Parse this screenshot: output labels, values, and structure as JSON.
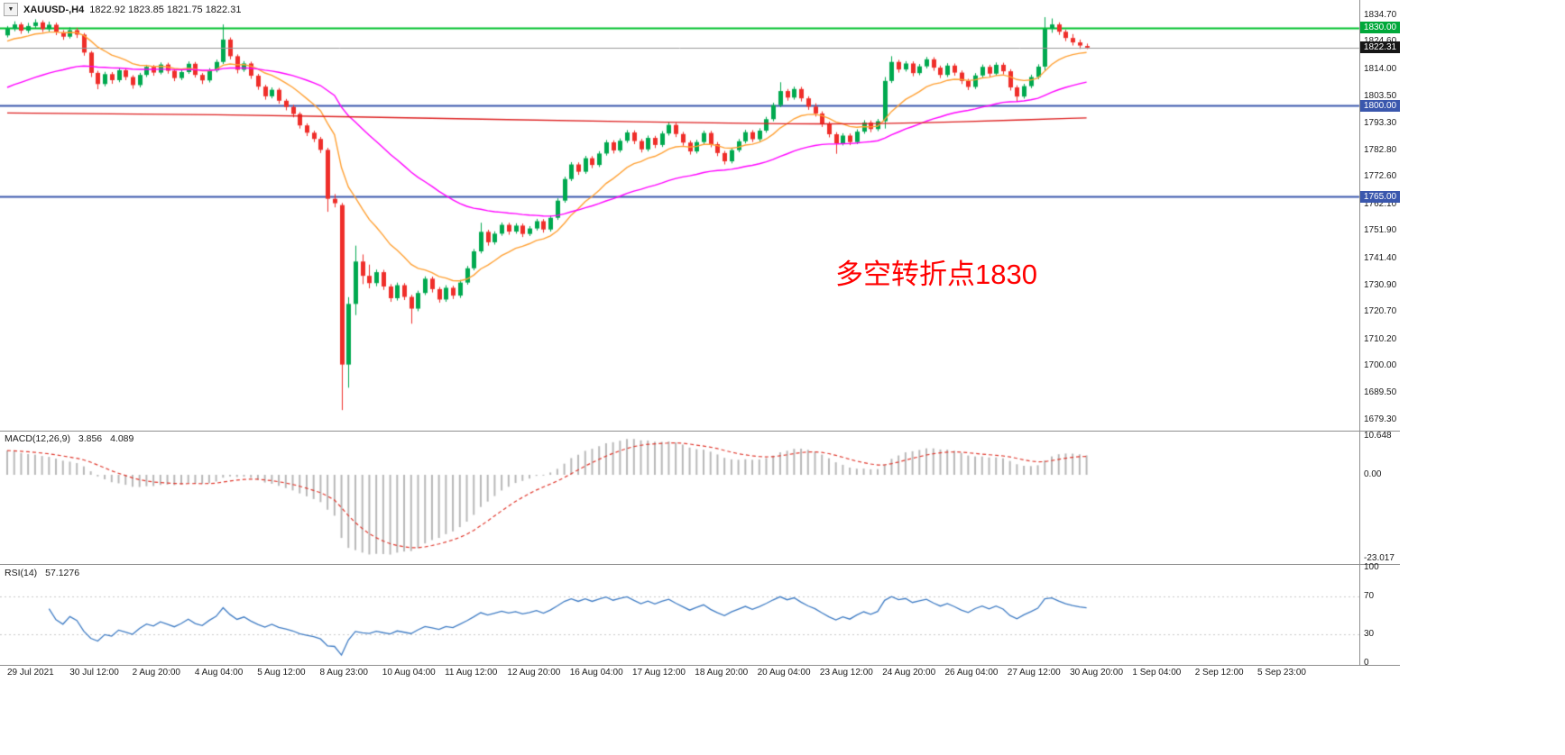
{
  "window": {
    "title_symbol": "XAUUSD-,H4",
    "title_ohlc": "1822.92 1823.85 1821.75 1822.31"
  },
  "icons": {
    "chart_menu_arrow": "▼"
  },
  "annotation": {
    "text": "多空转折点1830",
    "color": "#ff0000"
  },
  "colors": {
    "background": "#ffffff",
    "candle_up": "#00a94f",
    "candle_down": "#ef2e2a",
    "separator": "#8f8f8f",
    "axis_text": "#1a1a1a",
    "badge_green": "#00a83a",
    "badge_blue": "#3a57ad",
    "badge_black": "#161616"
  },
  "chart_data": {
    "type": "candlestick",
    "symbol": "XAUUSD-",
    "timeframe": "H4",
    "visible_price_range": [
      1679.3,
      1834.7
    ],
    "price_axis_ticks": [
      "1834.70",
      "1824.60",
      "1814.00",
      "1803.50",
      "1793.30",
      "1782.80",
      "1772.60",
      "1762.10",
      "1751.90",
      "1741.40",
      "1730.90",
      "1720.70",
      "1710.20",
      "1700.00",
      "1689.50",
      "1679.30"
    ],
    "price_badges": [
      {
        "text": "1830.00",
        "price": 1830.0,
        "color_key": "badge_green"
      },
      {
        "text": "1822.31",
        "price": 1822.31,
        "color_key": "badge_black"
      },
      {
        "text": "1800.00",
        "price": 1800.0,
        "color_key": "badge_blue"
      },
      {
        "text": "1765.00",
        "price": 1765.0,
        "color_key": "badge_blue"
      }
    ],
    "hlines": [
      {
        "price": 1830.0,
        "color": "#00c12e",
        "width": 2,
        "layer": "back"
      },
      {
        "price": 1800.0,
        "color": "#3a57ad",
        "width": 2,
        "layer": "back"
      },
      {
        "price": 1765.0,
        "color": "#3a57ad",
        "width": 2,
        "layer": "back"
      },
      {
        "price": 1822.31,
        "color": "#999999",
        "width": 1,
        "layer": "front"
      }
    ],
    "moving_averages": [
      {
        "name": "ma-fast-orange",
        "type": "ema",
        "period": 13,
        "seed": 1824,
        "color": "#ffa033"
      },
      {
        "name": "ma-medium-magenta",
        "type": "ema",
        "period": 45,
        "seed": 1806,
        "color": "#ff00ff"
      },
      {
        "name": "ma-slow-red",
        "type": "anchors",
        "color": "#dd1f1f",
        "points": [
          [
            0,
            1797.2
          ],
          [
            20,
            1796.8
          ],
          [
            40,
            1796.2
          ],
          [
            60,
            1795.2
          ],
          [
            80,
            1794.2
          ],
          [
            100,
            1793.4
          ],
          [
            112,
            1793.0
          ],
          [
            122,
            1793.0
          ],
          [
            132,
            1793.4
          ],
          [
            142,
            1794.2
          ],
          [
            150,
            1794.9
          ],
          [
            155,
            1795.3
          ]
        ]
      }
    ],
    "macd": {
      "label": "MACD(12,26,9)",
      "value_main": "3.856",
      "value_signal": "4.089",
      "axis_labels": [
        "10.648",
        "0.00",
        "-23.017"
      ],
      "params": [
        12,
        26,
        9
      ],
      "histogram_color": "#b8b8b8",
      "signal_color": "#e03a2f"
    },
    "rsi": {
      "label": "RSI(14)",
      "value": "57.1276",
      "axis_labels": [
        "100",
        "70",
        "30",
        "0"
      ],
      "period": 14,
      "levels": [
        70,
        30
      ],
      "line_color": "#3f7cc4"
    },
    "time_labels": [
      "29 Jul 2021",
      "30 Jul 12:00",
      "2 Aug 20:00",
      "4 Aug 04:00",
      "5 Aug 12:00",
      "8 Aug 23:00",
      "10 Aug 04:00",
      "11 Aug 12:00",
      "12 Aug 20:00",
      "16 Aug 04:00",
      "17 Aug 12:00",
      "18 Aug 20:00",
      "20 Aug 04:00",
      "23 Aug 12:00",
      "24 Aug 20:00",
      "26 Aug 04:00",
      "27 Aug 12:00",
      "30 Aug 20:00",
      "1 Sep 04:00",
      "2 Sep 12:00",
      "5 Sep 23:00"
    ],
    "candles": [
      [
        1827.0,
        1830.6,
        1826.2,
        1829.5
      ],
      [
        1829.5,
        1832.4,
        1828.6,
        1831.2
      ],
      [
        1831.2,
        1832.0,
        1827.6,
        1828.8
      ],
      [
        1828.8,
        1831.8,
        1827.9,
        1830.6
      ],
      [
        1830.6,
        1833.2,
        1829.8,
        1832.0
      ],
      [
        1832.0,
        1832.8,
        1828.3,
        1829.4
      ],
      [
        1829.4,
        1832.3,
        1828.5,
        1831.1
      ],
      [
        1831.1,
        1831.9,
        1827.1,
        1828.2
      ],
      [
        1828.2,
        1829.0,
        1825.3,
        1826.5
      ],
      [
        1826.5,
        1830.1,
        1825.8,
        1829.0
      ],
      [
        1829.0,
        1829.9,
        1826.0,
        1827.3
      ],
      [
        1827.3,
        1827.9,
        1819.2,
        1820.4
      ],
      [
        1820.4,
        1821.0,
        1811.0,
        1812.6
      ],
      [
        1812.6,
        1813.4,
        1806.3,
        1808.3
      ],
      [
        1808.3,
        1813.0,
        1807.4,
        1812.1
      ],
      [
        1812.1,
        1812.9,
        1808.4,
        1809.8
      ],
      [
        1809.8,
        1814.5,
        1809.0,
        1813.6
      ],
      [
        1813.6,
        1814.3,
        1809.8,
        1811.0
      ],
      [
        1811.0,
        1811.7,
        1806.5,
        1807.9
      ],
      [
        1807.9,
        1812.6,
        1807.0,
        1811.8
      ],
      [
        1811.8,
        1815.7,
        1811.0,
        1814.9
      ],
      [
        1814.9,
        1815.6,
        1811.5,
        1812.7
      ],
      [
        1812.7,
        1816.6,
        1812.0,
        1815.8
      ],
      [
        1815.8,
        1816.5,
        1812.3,
        1813.4
      ],
      [
        1813.4,
        1814.1,
        1809.4,
        1810.6
      ],
      [
        1810.6,
        1813.8,
        1809.8,
        1812.9
      ],
      [
        1812.9,
        1817.0,
        1812.2,
        1816.1
      ],
      [
        1816.1,
        1816.8,
        1810.8,
        1811.8
      ],
      [
        1811.8,
        1812.5,
        1808.3,
        1809.7
      ],
      [
        1809.7,
        1814.4,
        1808.9,
        1813.5
      ],
      [
        1813.5,
        1817.7,
        1812.8,
        1816.8
      ],
      [
        1816.8,
        1831.2,
        1816.0,
        1825.4
      ],
      [
        1825.4,
        1826.2,
        1817.8,
        1819.0
      ],
      [
        1819.0,
        1819.7,
        1812.4,
        1813.8
      ],
      [
        1813.8,
        1817.1,
        1813.0,
        1816.2
      ],
      [
        1816.2,
        1816.9,
        1810.3,
        1811.5
      ],
      [
        1811.5,
        1812.2,
        1806.1,
        1807.3
      ],
      [
        1807.3,
        1808.0,
        1802.3,
        1803.6
      ],
      [
        1803.6,
        1807.0,
        1802.8,
        1806.1
      ],
      [
        1806.1,
        1806.8,
        1800.7,
        1801.9
      ],
      [
        1801.9,
        1802.6,
        1798.2,
        1799.5
      ],
      [
        1799.5,
        1800.3,
        1795.5,
        1796.8
      ],
      [
        1796.8,
        1797.5,
        1791.2,
        1792.4
      ],
      [
        1792.4,
        1793.2,
        1788.3,
        1789.6
      ],
      [
        1789.6,
        1790.4,
        1786.0,
        1787.2
      ],
      [
        1787.2,
        1788.0,
        1781.8,
        1783.0
      ],
      [
        1783.0,
        1783.8,
        1759.2,
        1764.2
      ],
      [
        1764.2,
        1766.0,
        1760.9,
        1762.5
      ],
      [
        1761.8,
        1762.6,
        1683.0,
        1700.5
      ],
      [
        1700.5,
        1726.4,
        1691.6,
        1723.8
      ],
      [
        1723.8,
        1746.2,
        1719.5,
        1740.1
      ],
      [
        1740.1,
        1742.8,
        1731.4,
        1734.6
      ],
      [
        1734.6,
        1738.9,
        1729.8,
        1731.8
      ],
      [
        1731.8,
        1737.0,
        1730.6,
        1736.0
      ],
      [
        1736.0,
        1736.9,
        1729.2,
        1730.5
      ],
      [
        1730.5,
        1731.4,
        1724.6,
        1726.0
      ],
      [
        1726.0,
        1732.0,
        1725.1,
        1731.0
      ],
      [
        1731.0,
        1731.8,
        1725.3,
        1726.5
      ],
      [
        1726.5,
        1727.3,
        1716.2,
        1722.0
      ],
      [
        1722.0,
        1728.9,
        1721.0,
        1728.0
      ],
      [
        1728.0,
        1734.4,
        1727.2,
        1733.5
      ],
      [
        1733.5,
        1734.3,
        1728.2,
        1729.5
      ],
      [
        1729.5,
        1730.3,
        1724.3,
        1725.5
      ],
      [
        1725.5,
        1731.0,
        1724.6,
        1730.0
      ],
      [
        1730.0,
        1730.8,
        1725.7,
        1727.0
      ],
      [
        1727.0,
        1733.0,
        1726.1,
        1732.0
      ],
      [
        1732.0,
        1738.4,
        1731.2,
        1737.5
      ],
      [
        1737.5,
        1744.9,
        1736.7,
        1744.0
      ],
      [
        1744.0,
        1755.0,
        1743.2,
        1751.5
      ],
      [
        1751.5,
        1752.3,
        1746.2,
        1747.5
      ],
      [
        1747.5,
        1751.7,
        1746.6,
        1750.8
      ],
      [
        1750.8,
        1755.1,
        1750.0,
        1754.2
      ],
      [
        1754.2,
        1755.0,
        1750.4,
        1751.6
      ],
      [
        1751.6,
        1754.8,
        1750.8,
        1753.9
      ],
      [
        1753.9,
        1754.7,
        1749.5,
        1750.7
      ],
      [
        1750.7,
        1753.7,
        1749.9,
        1752.8
      ],
      [
        1752.8,
        1756.5,
        1752.0,
        1755.6
      ],
      [
        1755.6,
        1756.4,
        1751.2,
        1752.4
      ],
      [
        1752.4,
        1757.8,
        1751.6,
        1756.9
      ],
      [
        1756.9,
        1764.4,
        1756.1,
        1763.5
      ],
      [
        1763.5,
        1772.7,
        1762.7,
        1771.8
      ],
      [
        1771.8,
        1778.3,
        1771.0,
        1777.4
      ],
      [
        1777.4,
        1778.2,
        1773.4,
        1774.6
      ],
      [
        1774.6,
        1780.7,
        1773.8,
        1779.8
      ],
      [
        1779.8,
        1780.6,
        1776.0,
        1777.2
      ],
      [
        1777.2,
        1782.5,
        1776.4,
        1781.6
      ],
      [
        1781.6,
        1786.8,
        1780.8,
        1785.9
      ],
      [
        1785.9,
        1786.7,
        1781.6,
        1782.8
      ],
      [
        1782.8,
        1787.4,
        1782.0,
        1786.5
      ],
      [
        1786.5,
        1790.6,
        1785.7,
        1789.7
      ],
      [
        1789.7,
        1790.5,
        1785.2,
        1786.4
      ],
      [
        1786.4,
        1787.2,
        1782.0,
        1783.2
      ],
      [
        1783.2,
        1788.5,
        1782.4,
        1787.6
      ],
      [
        1787.6,
        1788.4,
        1783.7,
        1784.9
      ],
      [
        1784.9,
        1790.2,
        1784.1,
        1789.3
      ],
      [
        1789.3,
        1793.5,
        1788.5,
        1792.6
      ],
      [
        1792.6,
        1793.4,
        1787.9,
        1789.1
      ],
      [
        1789.1,
        1789.9,
        1784.6,
        1785.8
      ],
      [
        1785.8,
        1786.6,
        1781.2,
        1782.4
      ],
      [
        1782.4,
        1786.9,
        1781.6,
        1786.0
      ],
      [
        1786.0,
        1790.4,
        1785.2,
        1789.5
      ],
      [
        1789.5,
        1790.3,
        1784.0,
        1785.2
      ],
      [
        1785.2,
        1786.0,
        1780.6,
        1781.8
      ],
      [
        1781.8,
        1782.6,
        1777.4,
        1778.6
      ],
      [
        1778.6,
        1783.8,
        1777.8,
        1782.9
      ],
      [
        1782.9,
        1787.2,
        1782.1,
        1786.3
      ],
      [
        1786.3,
        1790.7,
        1785.5,
        1789.8
      ],
      [
        1789.8,
        1790.6,
        1786.0,
        1787.1
      ],
      [
        1787.1,
        1791.3,
        1786.3,
        1790.4
      ],
      [
        1790.4,
        1795.7,
        1789.6,
        1794.8
      ],
      [
        1794.8,
        1801.1,
        1794.0,
        1800.2
      ],
      [
        1800.2,
        1809.0,
        1799.4,
        1805.6
      ],
      [
        1805.6,
        1806.4,
        1801.9,
        1803.1
      ],
      [
        1803.1,
        1807.3,
        1802.3,
        1806.4
      ],
      [
        1806.4,
        1807.2,
        1801.6,
        1802.8
      ],
      [
        1802.8,
        1803.6,
        1798.4,
        1799.6
      ],
      [
        1799.6,
        1800.9,
        1795.8,
        1797.0
      ],
      [
        1797.0,
        1797.8,
        1791.8,
        1793.0
      ],
      [
        1793.0,
        1793.8,
        1787.8,
        1789.0
      ],
      [
        1789.0,
        1789.8,
        1781.5,
        1785.5
      ],
      [
        1785.5,
        1789.4,
        1784.7,
        1788.5
      ],
      [
        1788.5,
        1789.3,
        1784.8,
        1786.0
      ],
      [
        1786.0,
        1790.9,
        1785.2,
        1790.0
      ],
      [
        1790.0,
        1794.4,
        1789.2,
        1793.5
      ],
      [
        1793.5,
        1794.3,
        1789.8,
        1791.0
      ],
      [
        1791.0,
        1794.9,
        1790.2,
        1794.0
      ],
      [
        1794.0,
        1811.0,
        1791.2,
        1809.5
      ],
      [
        1809.5,
        1819.0,
        1808.7,
        1816.8
      ],
      [
        1816.8,
        1817.6,
        1812.7,
        1813.9
      ],
      [
        1813.9,
        1817.1,
        1813.1,
        1816.2
      ],
      [
        1816.2,
        1817.0,
        1811.3,
        1812.5
      ],
      [
        1812.5,
        1816.0,
        1811.7,
        1815.1
      ],
      [
        1815.1,
        1818.7,
        1814.3,
        1817.8
      ],
      [
        1817.8,
        1818.6,
        1813.4,
        1814.6
      ],
      [
        1814.6,
        1815.4,
        1810.6,
        1811.8
      ],
      [
        1811.8,
        1816.3,
        1811.0,
        1815.4
      ],
      [
        1815.4,
        1816.2,
        1811.5,
        1812.7
      ],
      [
        1812.7,
        1813.5,
        1808.3,
        1809.5
      ],
      [
        1809.5,
        1810.3,
        1806.0,
        1807.2
      ],
      [
        1807.2,
        1812.5,
        1806.4,
        1811.6
      ],
      [
        1811.6,
        1815.8,
        1810.8,
        1814.9
      ],
      [
        1814.9,
        1815.7,
        1811.1,
        1812.3
      ],
      [
        1812.3,
        1816.6,
        1811.5,
        1815.7
      ],
      [
        1815.7,
        1816.5,
        1812.0,
        1813.2
      ],
      [
        1813.2,
        1814.0,
        1805.8,
        1807.0
      ],
      [
        1807.0,
        1807.8,
        1801.5,
        1803.5
      ],
      [
        1803.5,
        1808.4,
        1802.7,
        1807.5
      ],
      [
        1807.5,
        1811.9,
        1806.7,
        1811.0
      ],
      [
        1811.0,
        1815.9,
        1810.2,
        1815.0
      ],
      [
        1815.0,
        1834.0,
        1813.5,
        1829.5
      ],
      [
        1829.5,
        1833.5,
        1828.0,
        1831.2
      ],
      [
        1831.2,
        1832.0,
        1827.2,
        1828.4
      ],
      [
        1828.4,
        1829.2,
        1824.8,
        1826.0
      ],
      [
        1826.0,
        1827.5,
        1823.1,
        1824.3
      ],
      [
        1824.3,
        1825.4,
        1821.8,
        1823.1
      ],
      [
        1822.92,
        1823.85,
        1821.75,
        1822.31
      ]
    ]
  }
}
